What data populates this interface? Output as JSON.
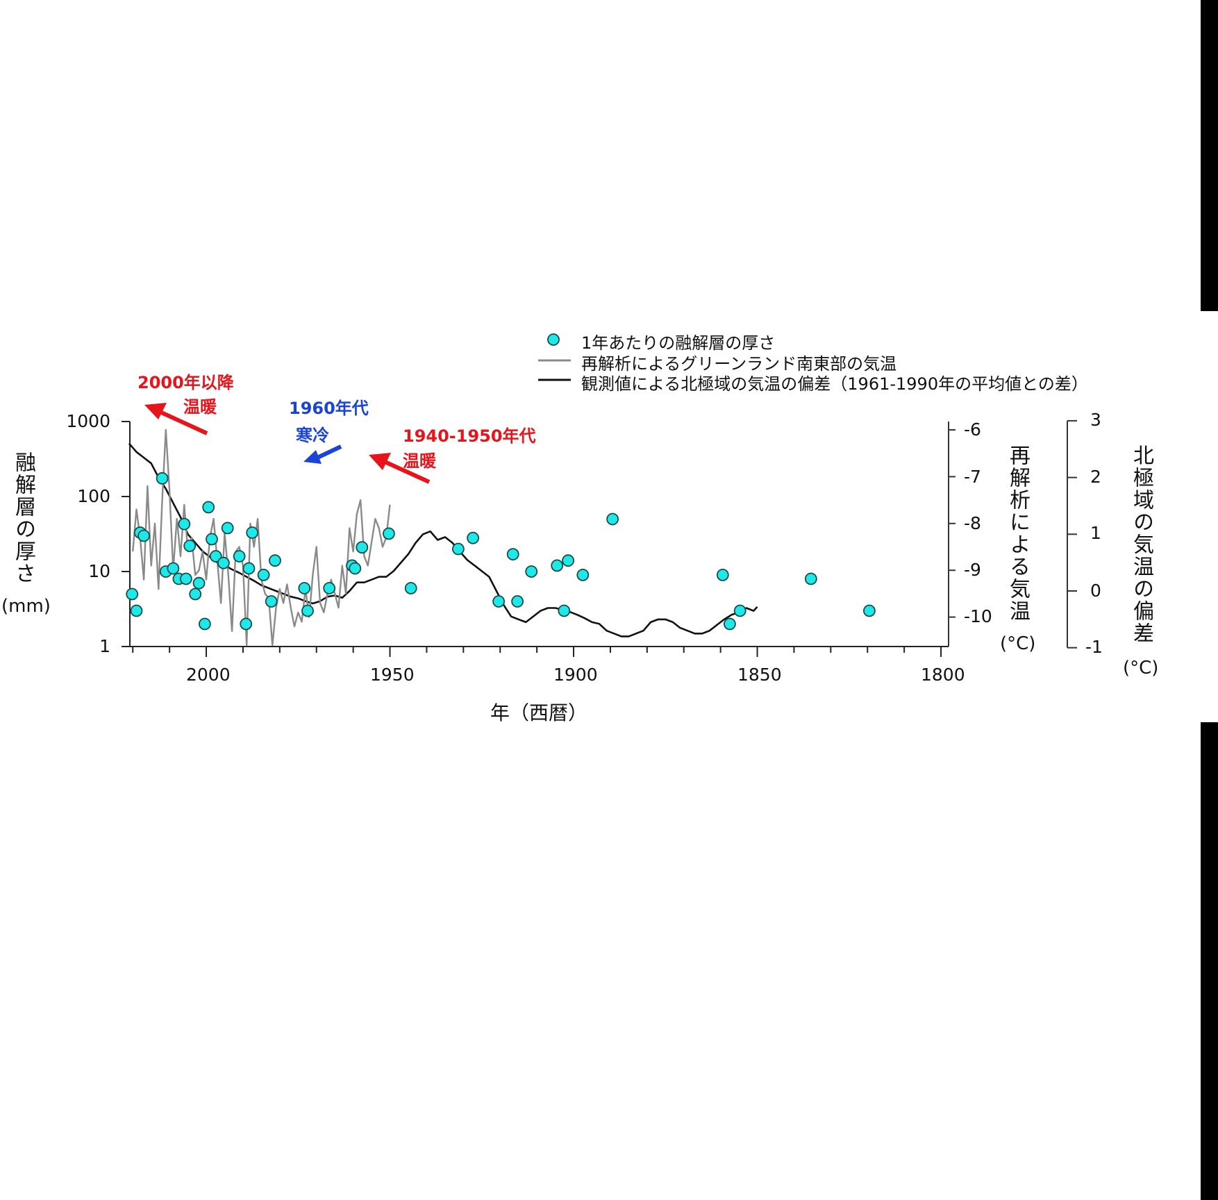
{
  "chart_data": {
    "type": "scatter",
    "title": "",
    "xlabel": "年（西暦）",
    "x_axis": {
      "reversed": true,
      "range": [
        2021,
        1800
      ],
      "major_ticks": [
        2000,
        1950,
        1900,
        1850,
        1800
      ],
      "minor_tick_step": 10
    },
    "y_axes": [
      {
        "id": "melt",
        "label": "融解層の厚さ",
        "unit": "(mm)",
        "scale": "log",
        "range": [
          1,
          1000
        ],
        "ticks": [
          1,
          10,
          100,
          1000
        ],
        "position": "left"
      },
      {
        "id": "reanalysis",
        "label": "再解析による気温",
        "unit": "(°C)",
        "scale": "linear",
        "range": [
          -10.6,
          -6
        ],
        "ticks": [
          -6,
          -7,
          -8,
          -9,
          -10
        ],
        "position": "right"
      },
      {
        "id": "arctic",
        "label": "北極域の気温の偏差",
        "unit": "(°C)",
        "scale": "linear",
        "range": [
          -1,
          3
        ],
        "ticks": [
          3,
          2,
          1,
          0,
          -1
        ],
        "position": "right-outer"
      }
    ],
    "legend": {
      "position": "top-right",
      "entries": [
        {
          "label": "1年あたりの融解層の厚さ",
          "type": "marker",
          "color": "#1ee8e8"
        },
        {
          "label": "再解析によるグリーンランド南東部の気温",
          "type": "line",
          "color": "#8a8a8a"
        },
        {
          "label": "観測値による北極域の気温の偏差（1961-1990年の平均値との差）",
          "type": "line",
          "color": "#111111"
        }
      ]
    },
    "series": [
      {
        "name": "1年あたりの融解層の厚さ",
        "axis": "melt",
        "style": "marker",
        "x": [
          2020.2,
          2019,
          2018,
          2017,
          2012,
          2011,
          2009,
          2007.5,
          2006,
          2005.5,
          2004.5,
          2003,
          2002,
          2000.4,
          1999.4,
          1998.5,
          1997.4,
          1995.3,
          1994.2,
          1991,
          1989.2,
          1988.4,
          1987.5,
          1984.4,
          1982.3,
          1981.3,
          1973.3,
          1972.4,
          1966.5,
          1960.3,
          1959.5,
          1957.6,
          1950.3,
          1944.3,
          1931.4,
          1927.4,
          1920.4,
          1916.5,
          1915.3,
          1911.5,
          1904.5,
          1902.6,
          1901.5,
          1897.5,
          1889.4,
          1859.4,
          1857.5,
          1854.7,
          1835.4,
          1819.5
        ],
        "values": [
          5,
          3,
          33,
          30,
          175,
          10,
          11,
          8,
          43,
          8,
          22,
          5,
          7,
          2,
          72,
          27,
          16,
          13,
          38,
          16,
          2,
          11,
          33,
          9,
          4,
          14,
          6,
          3,
          6,
          12,
          11,
          21,
          32,
          6,
          20,
          28,
          4,
          17,
          4,
          10,
          12,
          3,
          14,
          9,
          50,
          9,
          2,
          3,
          8,
          3
        ]
      },
      {
        "name": "再解析によるグリーンランド南東部の気温",
        "axis": "reanalysis",
        "style": "line",
        "x": [
          2020,
          2019,
          2018,
          2017,
          2016,
          2015,
          2014,
          2013,
          2012,
          2011,
          2010,
          2009,
          2008,
          2007,
          2006,
          2005,
          2004,
          2003,
          2002,
          2001,
          2000,
          1999,
          1998,
          1997,
          1996,
          1995,
          1994,
          1993,
          1992,
          1991,
          1990,
          1989,
          1988,
          1987,
          1986,
          1985,
          1984,
          1983,
          1982,
          1981,
          1980,
          1979,
          1978,
          1977,
          1976,
          1975,
          1974,
          1973,
          1972,
          1971,
          1970,
          1969,
          1968,
          1967,
          1966,
          1965,
          1964,
          1963,
          1962,
          1961,
          1960,
          1959,
          1958,
          1957,
          1956,
          1955,
          1954,
          1953,
          1952,
          1951,
          1950
        ],
        "values": [
          -8.6,
          -7.7,
          -8.3,
          -9.2,
          -7.2,
          -8.9,
          -8.0,
          -9.4,
          -7.5,
          -6.0,
          -7.3,
          -9.0,
          -7.9,
          -8.7,
          -7.6,
          -8.6,
          -8.3,
          -9.1,
          -9.0,
          -8.6,
          -9.2,
          -8.3,
          -7.9,
          -8.8,
          -9.7,
          -8.2,
          -9.1,
          -10.3,
          -8.6,
          -8.5,
          -8.9,
          -10.6,
          -8.0,
          -8.5,
          -7.9,
          -9.2,
          -9.5,
          -9.6,
          -10.6,
          -9.8,
          -9.4,
          -9.7,
          -9.3,
          -9.8,
          -10.2,
          -9.9,
          -10.1,
          -9.4,
          -10.0,
          -9.1,
          -8.5,
          -9.7,
          -9.9,
          -9.5,
          -9.2,
          -9.5,
          -9.8,
          -8.9,
          -9.5,
          -8.1,
          -8.6,
          -7.8,
          -7.5,
          -8.7,
          -8.9,
          -8.4,
          -7.9,
          -8.1,
          -8.5,
          -8.3,
          -7.6
        ]
      },
      {
        "name": "観測値による北極域の気温の偏差（1961-1990年の平均値との差）",
        "axis": "arctic",
        "style": "line",
        "x": [
          2021,
          2019,
          2017,
          2015,
          2013,
          2011,
          2009,
          2007,
          2005,
          2003,
          2001,
          1999,
          1997,
          1995,
          1993,
          1991,
          1989,
          1987,
          1985,
          1983,
          1981,
          1979,
          1977,
          1975,
          1973,
          1971,
          1969,
          1967,
          1965,
          1963,
          1961,
          1959,
          1957,
          1955,
          1953,
          1951,
          1949,
          1947,
          1945,
          1943,
          1941,
          1939,
          1937,
          1935,
          1933,
          1931,
          1929,
          1927,
          1925,
          1923,
          1921,
          1919,
          1917,
          1915,
          1913,
          1911,
          1909,
          1907,
          1905,
          1903,
          1901,
          1899,
          1897,
          1895,
          1893,
          1891,
          1889,
          1887,
          1885,
          1883,
          1881,
          1879,
          1877,
          1875,
          1873,
          1871,
          1869,
          1867,
          1865,
          1863,
          1861,
          1859,
          1857,
          1855,
          1853,
          1851,
          1850
        ],
        "values": [
          2.6,
          2.45,
          2.35,
          2.25,
          2.0,
          1.8,
          1.55,
          1.3,
          1.0,
          0.85,
          0.7,
          0.6,
          0.5,
          0.45,
          0.38,
          0.32,
          0.25,
          0.18,
          0.1,
          0.05,
          0.0,
          -0.05,
          -0.1,
          -0.13,
          -0.18,
          -0.22,
          -0.18,
          -0.1,
          -0.08,
          -0.12,
          0.0,
          0.15,
          0.15,
          0.2,
          0.25,
          0.25,
          0.35,
          0.5,
          0.65,
          0.85,
          1.0,
          1.05,
          0.9,
          0.95,
          0.85,
          0.7,
          0.55,
          0.45,
          0.35,
          0.25,
          0.0,
          -0.25,
          -0.45,
          -0.5,
          -0.55,
          -0.45,
          -0.35,
          -0.3,
          -0.3,
          -0.33,
          -0.37,
          -0.42,
          -0.48,
          -0.55,
          -0.58,
          -0.7,
          -0.75,
          -0.8,
          -0.8,
          -0.75,
          -0.7,
          -0.55,
          -0.5,
          -0.5,
          -0.55,
          -0.65,
          -0.7,
          -0.75,
          -0.75,
          -0.7,
          -0.6,
          -0.5,
          -0.42,
          -0.38,
          -0.3,
          -0.35,
          -0.28
        ]
      }
    ],
    "annotations": [
      {
        "text_line1": "2000年以降",
        "text_line2": "温暖",
        "color": "#e8141b",
        "arrow": "up-left"
      },
      {
        "text_line1": "1960年代",
        "text_line2": "寒冷",
        "color": "#1a44d8",
        "arrow": "down-left"
      },
      {
        "text_line1": "1940-1950年代",
        "text_line2": "温暖",
        "color": "#e8141b",
        "arrow": "up-left"
      }
    ],
    "grid": false
  },
  "labels": {
    "y_left_title": "融解層の厚さ",
    "y_left_unit": "(mm)",
    "y_right1_title": "再解析による気温",
    "y_right1_unit": "(°C)",
    "y_right2_title": "北極域の気温の偏差",
    "y_right2_unit": "(°C)",
    "x_title": "年（西暦）",
    "x_ticks": [
      "2000",
      "1950",
      "1900",
      "1850",
      "1800"
    ],
    "y_left_ticks": [
      "1000",
      "100",
      "10",
      "1"
    ],
    "y_right1_ticks": [
      "-6",
      "-7",
      "-8",
      "-9",
      "-10"
    ],
    "y_right2_ticks": [
      "3",
      "2",
      "1",
      "0",
      "-1"
    ]
  },
  "legend": {
    "item1": "1年あたりの融解層の厚さ",
    "item2": "再解析によるグリーンランド南東部の気温",
    "item3": "観測値による北極域の気温の偏差（1961-1990年の平均値との差）"
  },
  "annotations": {
    "a1_line1": "2000年以降",
    "a1_line2": "温暖",
    "a2_line1": "1960年代",
    "a2_line2": "寒冷",
    "a3_line1": "1940-1950年代",
    "a3_line2": "温暖"
  },
  "colors": {
    "marker": "#1ee8e8",
    "reanalysis_line": "#8a8a8a",
    "arctic_line": "#111111",
    "warm": "#e8141b",
    "cold": "#1a44d8"
  }
}
